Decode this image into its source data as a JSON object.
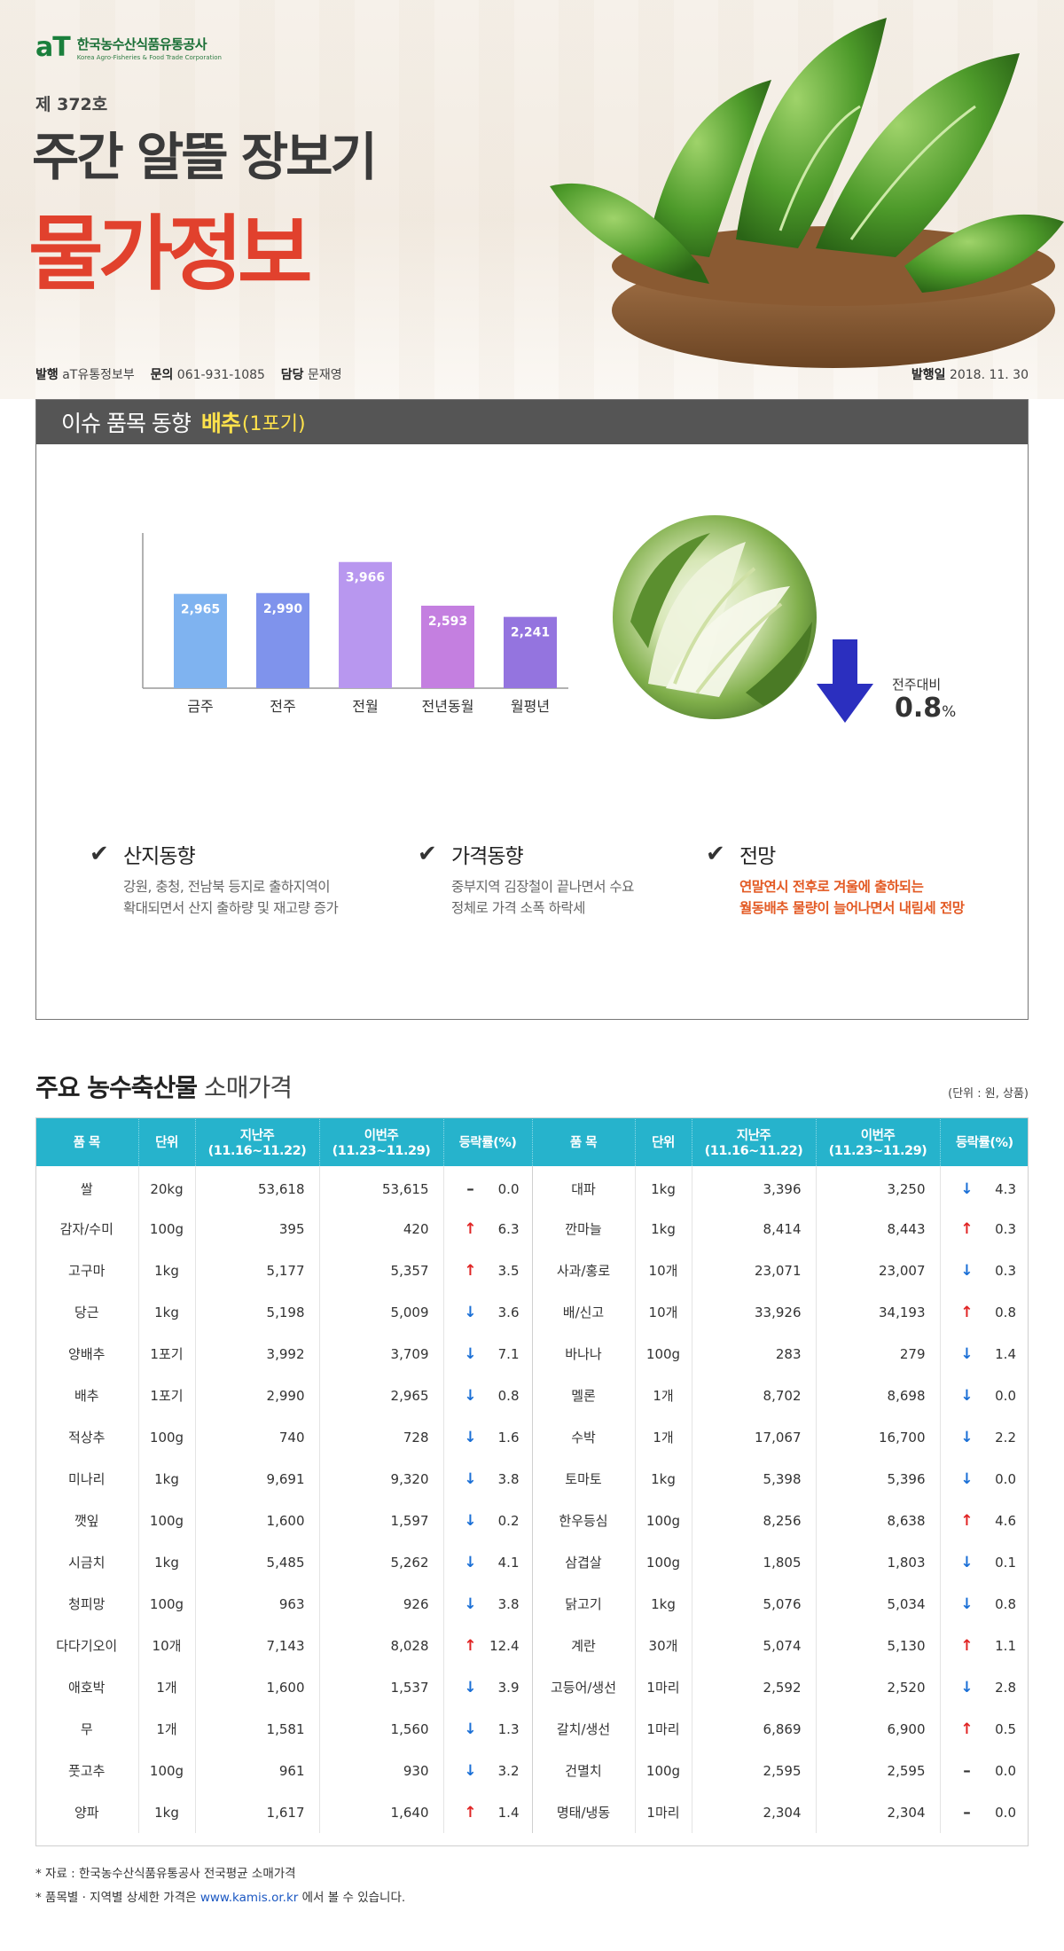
{
  "header": {
    "logo_mark": "aT",
    "org_name_ko": "한국농수산식품유통공사",
    "org_name_en": "Korea Agro-Fisheries & Food Trade Corporation",
    "issue_no": "제 372호",
    "headline_1": "주간 알뜰 장보기",
    "headline_2": "물가정보",
    "publisher_label": "발행",
    "publisher": "aT유통정보부",
    "contact_label": "문의",
    "contact": "061-931-1085",
    "manager_label": "담당",
    "manager": "문재영",
    "date_label": "발행일",
    "date": "2018. 11. 30"
  },
  "issue": {
    "title": "이슈 품목 동향",
    "item": "배추",
    "unit": "(1포기)",
    "wow_label": "전주대비",
    "wow_value": "0.8",
    "wow_unit": "%",
    "trends": [
      {
        "title": "산지동향",
        "lines": [
          "강원, 충청, 전남북 등지로 출하지역이",
          "확대되면서 산지 출하량 및 재고량 증가"
        ],
        "highlight": false
      },
      {
        "title": "가격동향",
        "lines": [
          "중부지역 김장철이 끝나면서 수요",
          "정체로 가격 소폭 하락세"
        ],
        "highlight": false
      },
      {
        "title": "전망",
        "lines": [
          "연말연시 전후로 겨울에 출하되는",
          "월동배추 물량이 늘어나면서 내림세 전망"
        ],
        "highlight": true
      }
    ]
  },
  "chart_data": {
    "type": "bar",
    "categories": [
      "금주",
      "전주",
      "전월",
      "전년동월",
      "월평년"
    ],
    "values": [
      2965,
      2990,
      3966,
      2593,
      2241
    ],
    "value_labels": [
      "2,965",
      "2,990",
      "3,966",
      "2,593",
      "2,241"
    ],
    "colors": [
      "#7fb3f0",
      "#7f93ec",
      "#b897ef",
      "#c47fe0",
      "#9474df"
    ],
    "ylim": [
      0,
      4600
    ],
    "title": "",
    "xlabel": "",
    "ylabel": ""
  },
  "prices": {
    "section_title_bold": "주요 농수축산물",
    "section_title_light": "소매가격",
    "unit_note": "(단위 : 원, 상품)",
    "columns": [
      "품 목",
      "단위",
      "지난주(11.16~11.22)",
      "이번주(11.23~11.29)",
      "등락률(%)"
    ],
    "rows": [
      [
        {
          "name": "쌀",
          "unit": "20kg",
          "last": "53,618",
          "this": "53,615",
          "dir": "flat",
          "rate": "0.0"
        },
        {
          "name": "대파",
          "unit": "1kg",
          "last": "3,396",
          "this": "3,250",
          "dir": "down",
          "rate": "4.3"
        }
      ],
      [
        {
          "name": "감자/수미",
          "unit": "100g",
          "last": "395",
          "this": "420",
          "dir": "up",
          "rate": "6.3"
        },
        {
          "name": "깐마늘",
          "unit": "1kg",
          "last": "8,414",
          "this": "8,443",
          "dir": "up",
          "rate": "0.3"
        }
      ],
      [
        {
          "name": "고구마",
          "unit": "1kg",
          "last": "5,177",
          "this": "5,357",
          "dir": "up",
          "rate": "3.5"
        },
        {
          "name": "사과/홍로",
          "unit": "10개",
          "last": "23,071",
          "this": "23,007",
          "dir": "down",
          "rate": "0.3"
        }
      ],
      [
        {
          "name": "당근",
          "unit": "1kg",
          "last": "5,198",
          "this": "5,009",
          "dir": "down",
          "rate": "3.6"
        },
        {
          "name": "배/신고",
          "unit": "10개",
          "last": "33,926",
          "this": "34,193",
          "dir": "up",
          "rate": "0.8"
        }
      ],
      [
        {
          "name": "양배추",
          "unit": "1포기",
          "last": "3,992",
          "this": "3,709",
          "dir": "down",
          "rate": "7.1"
        },
        {
          "name": "바나나",
          "unit": "100g",
          "last": "283",
          "this": "279",
          "dir": "down",
          "rate": "1.4"
        }
      ],
      [
        {
          "name": "배추",
          "unit": "1포기",
          "last": "2,990",
          "this": "2,965",
          "dir": "down",
          "rate": "0.8"
        },
        {
          "name": "멜론",
          "unit": "1개",
          "last": "8,702",
          "this": "8,698",
          "dir": "down",
          "rate": "0.0"
        }
      ],
      [
        {
          "name": "적상추",
          "unit": "100g",
          "last": "740",
          "this": "728",
          "dir": "down",
          "rate": "1.6"
        },
        {
          "name": "수박",
          "unit": "1개",
          "last": "17,067",
          "this": "16,700",
          "dir": "down",
          "rate": "2.2"
        }
      ],
      [
        {
          "name": "미나리",
          "unit": "1kg",
          "last": "9,691",
          "this": "9,320",
          "dir": "down",
          "rate": "3.8"
        },
        {
          "name": "토마토",
          "unit": "1kg",
          "last": "5,398",
          "this": "5,396",
          "dir": "down",
          "rate": "0.0"
        }
      ],
      [
        {
          "name": "깻잎",
          "unit": "100g",
          "last": "1,600",
          "this": "1,597",
          "dir": "down",
          "rate": "0.2"
        },
        {
          "name": "한우등심",
          "unit": "100g",
          "last": "8,256",
          "this": "8,638",
          "dir": "up",
          "rate": "4.6"
        }
      ],
      [
        {
          "name": "시금치",
          "unit": "1kg",
          "last": "5,485",
          "this": "5,262",
          "dir": "down",
          "rate": "4.1"
        },
        {
          "name": "삼겹살",
          "unit": "100g",
          "last": "1,805",
          "this": "1,803",
          "dir": "down",
          "rate": "0.1"
        }
      ],
      [
        {
          "name": "청피망",
          "unit": "100g",
          "last": "963",
          "this": "926",
          "dir": "down",
          "rate": "3.8"
        },
        {
          "name": "닭고기",
          "unit": "1kg",
          "last": "5,076",
          "this": "5,034",
          "dir": "down",
          "rate": "0.8"
        }
      ],
      [
        {
          "name": "다다기오이",
          "unit": "10개",
          "last": "7,143",
          "this": "8,028",
          "dir": "up",
          "rate": "12.4"
        },
        {
          "name": "계란",
          "unit": "30개",
          "last": "5,074",
          "this": "5,130",
          "dir": "up",
          "rate": "1.1"
        }
      ],
      [
        {
          "name": "애호박",
          "unit": "1개",
          "last": "1,600",
          "this": "1,537",
          "dir": "down",
          "rate": "3.9"
        },
        {
          "name": "고등어/생선",
          "unit": "1마리",
          "last": "2,592",
          "this": "2,520",
          "dir": "down",
          "rate": "2.8"
        }
      ],
      [
        {
          "name": "무",
          "unit": "1개",
          "last": "1,581",
          "this": "1,560",
          "dir": "down",
          "rate": "1.3"
        },
        {
          "name": "갈치/생선",
          "unit": "1마리",
          "last": "6,869",
          "this": "6,900",
          "dir": "up",
          "rate": "0.5"
        }
      ],
      [
        {
          "name": "풋고추",
          "unit": "100g",
          "last": "961",
          "this": "930",
          "dir": "down",
          "rate": "3.2"
        },
        {
          "name": "건멸치",
          "unit": "100g",
          "last": "2,595",
          "this": "2,595",
          "dir": "flat",
          "rate": "0.0"
        }
      ],
      [
        {
          "name": "양파",
          "unit": "1kg",
          "last": "1,617",
          "this": "1,640",
          "dir": "up",
          "rate": "1.4"
        },
        {
          "name": "명태/냉동",
          "unit": "1마리",
          "last": "2,304",
          "this": "2,304",
          "dir": "flat",
          "rate": "0.0"
        }
      ]
    ]
  },
  "footnotes": {
    "source": "* 자료 : 한국농수산식품유통공사 전국평균 소매가격",
    "detail_prefix": "* 품목별 · 지역별 상세한 가격은",
    "detail_link": "www.kamis.or.kr",
    "detail_suffix": "에서 볼 수 있습니다."
  }
}
